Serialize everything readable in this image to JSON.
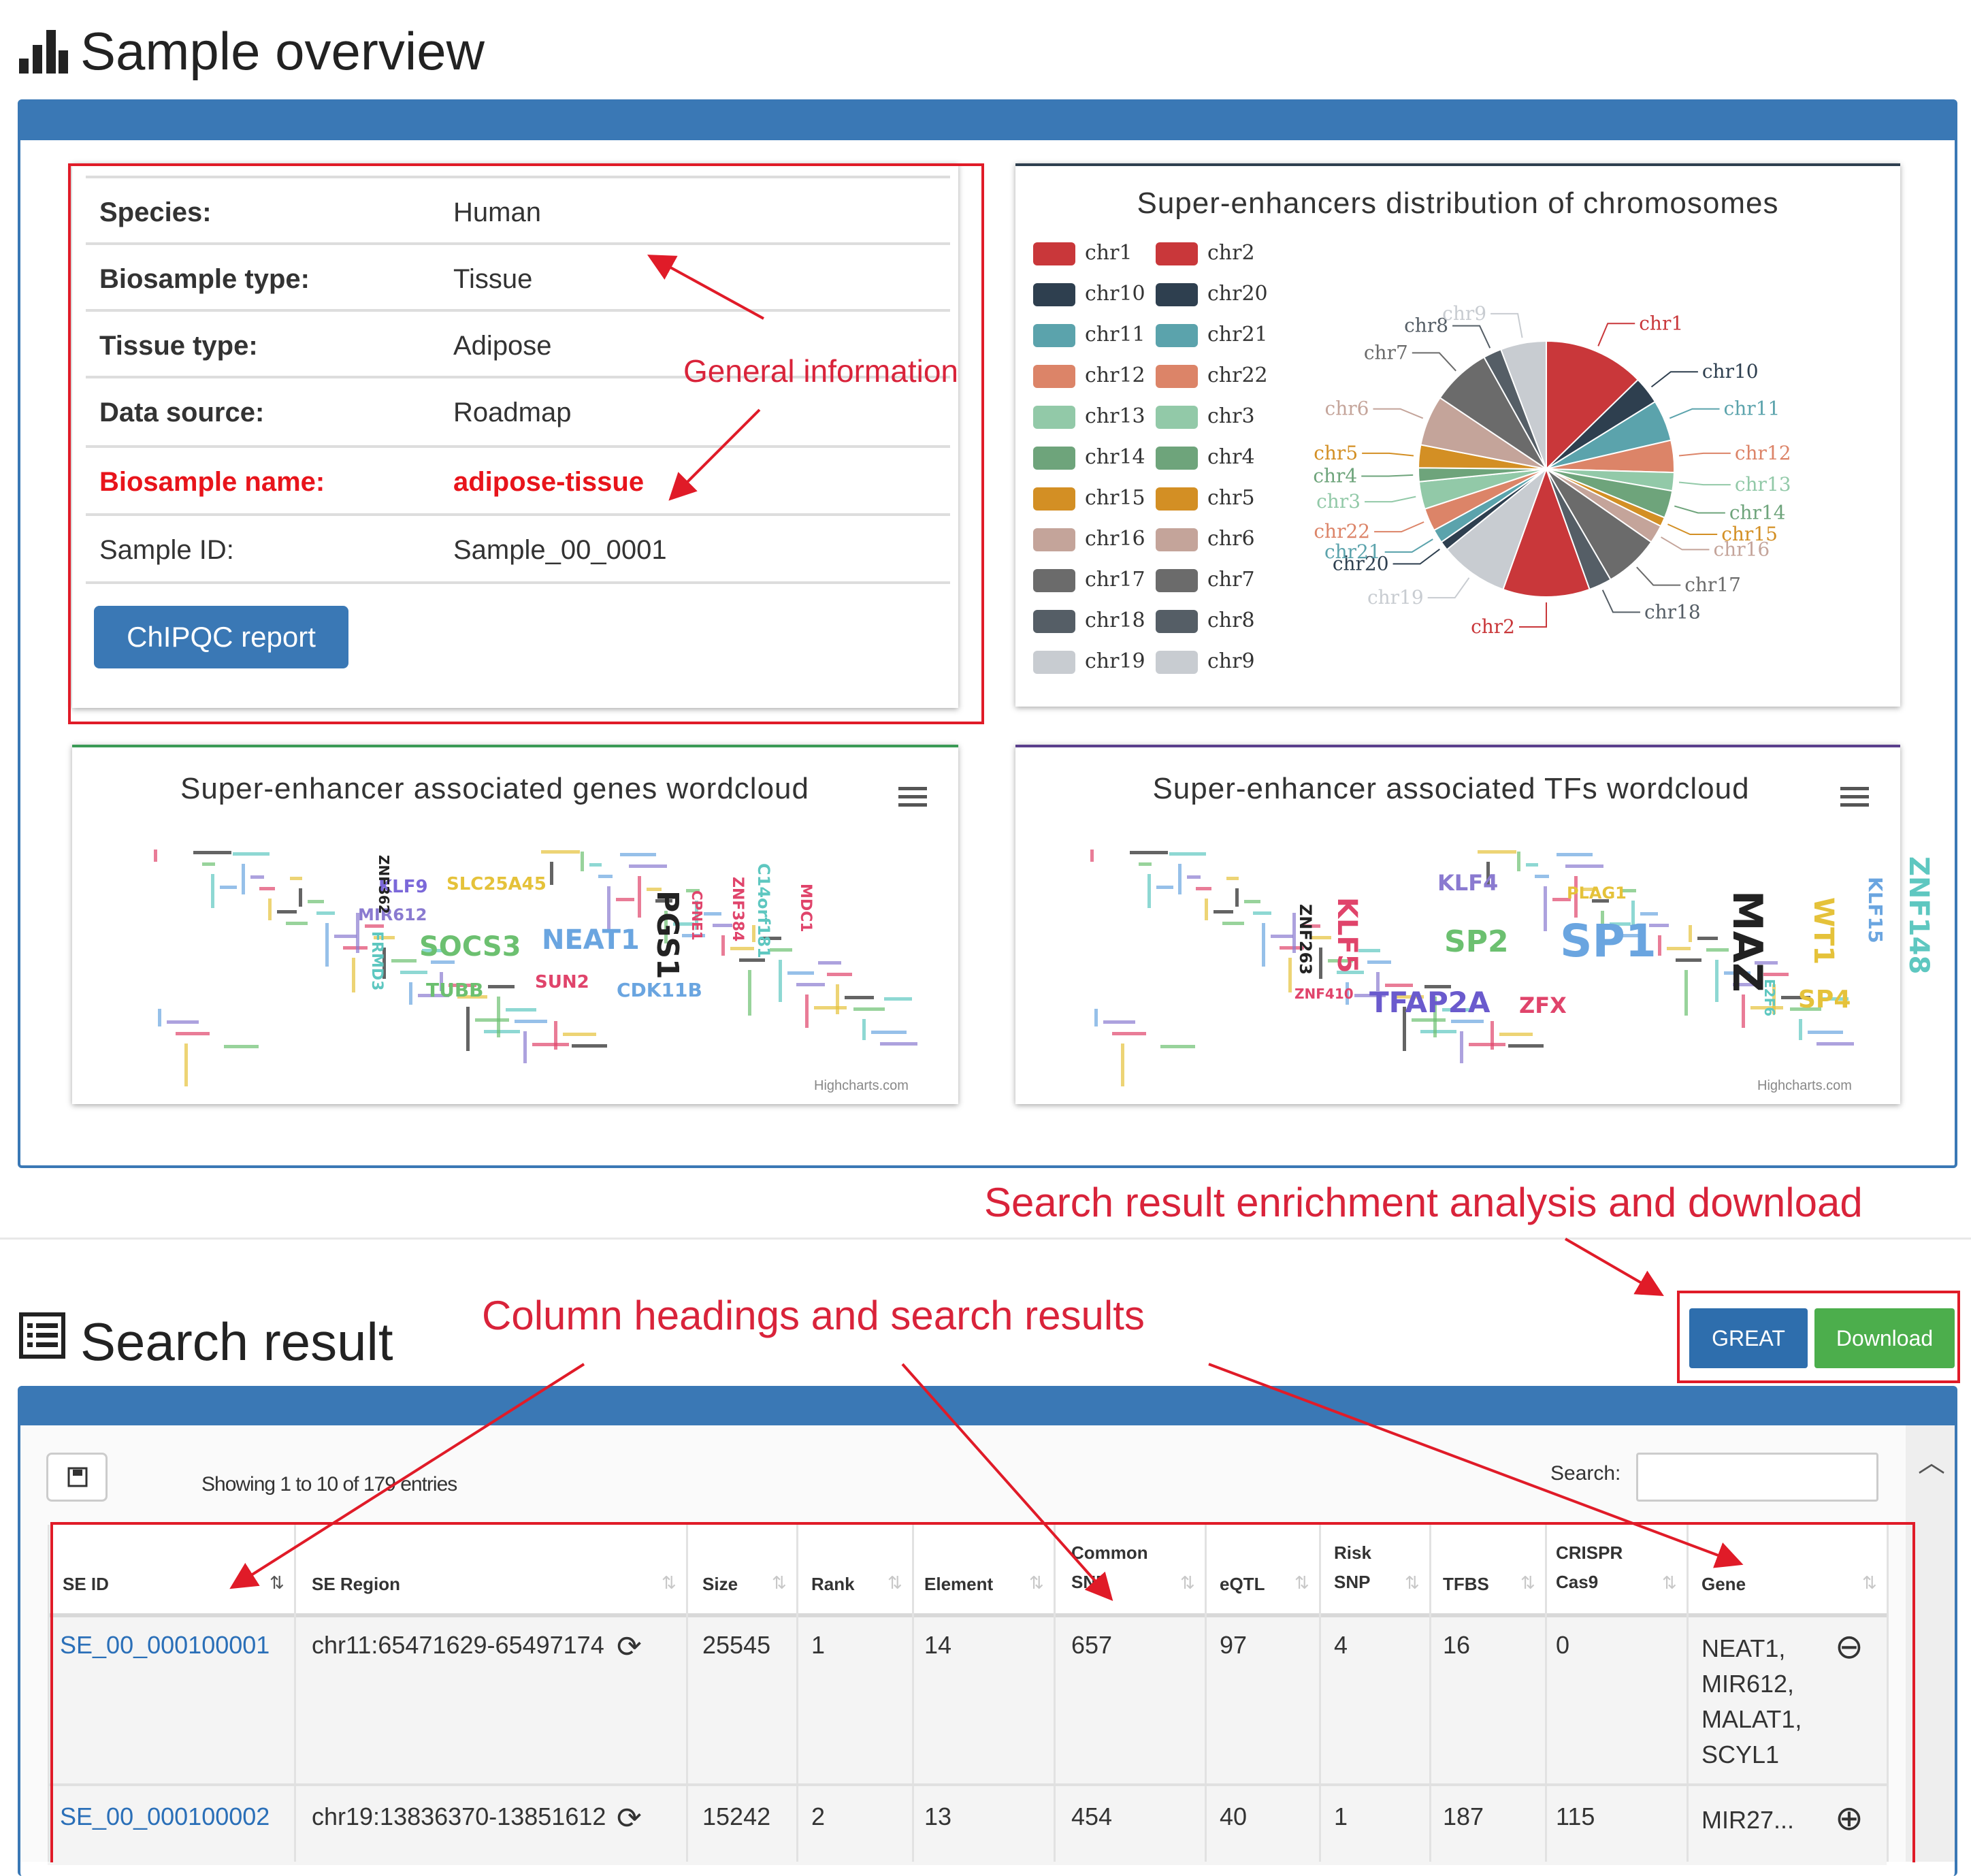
{
  "overview": {
    "title": "Sample overview",
    "info": [
      {
        "key": "Species:",
        "value": "Human"
      },
      {
        "key": "Biosample type:",
        "value": "Tissue"
      },
      {
        "key": "Tissue type:",
        "value": "Adipose"
      },
      {
        "key": "Data source:",
        "value": "Roadmap"
      },
      {
        "key": "Biosample name:",
        "value": "adipose-tissue"
      },
      {
        "key": "Sample ID:",
        "value": "Sample_00_0001"
      }
    ],
    "chipqc_label": "ChIPQC report"
  },
  "annotations": {
    "general": "General information",
    "enrichment": "Search result enrichment analysis and download",
    "columns": "Column headings and search results"
  },
  "pie": {
    "title": "Super-enhancers distribution of chromosomes",
    "legend_left": [
      "chr1",
      "chr10",
      "chr11",
      "chr12",
      "chr13",
      "chr14",
      "chr15",
      "chr16",
      "chr17",
      "chr18",
      "chr19"
    ],
    "legend_right": [
      "chr2",
      "chr20",
      "chr21",
      "chr22",
      "chr3",
      "chr4",
      "chr5",
      "chr6",
      "chr7",
      "chr8",
      "chr9"
    ],
    "colors": [
      "#c9373a",
      "#2e3f4f",
      "#5ba3ac",
      "#dc8468",
      "#92c9a8",
      "#6ea47b",
      "#d38f24",
      "#c4a49a",
      "#6b6b6b",
      "#555e66",
      "#c8ccd1"
    ]
  },
  "chart_data": {
    "type": "pie",
    "title": "Super-enhancers distribution of chromosomes",
    "categories": [
      "chr1",
      "chr10",
      "chr11",
      "chr12",
      "chr13",
      "chr14",
      "chr15",
      "chr16",
      "chr17",
      "chr18",
      "chr2",
      "chr19",
      "chr20",
      "chr21",
      "chr22",
      "chr3",
      "chr4",
      "chr5",
      "chr6",
      "chr7",
      "chr8",
      "chr9"
    ],
    "values": [
      11,
      3,
      4.5,
      3.5,
      2,
      3,
      1,
      2,
      6,
      2.5,
      9.5,
      7.5,
      1,
      1.5,
      2.5,
      3,
      1.5,
      2.5,
      5.5,
      6.5,
      2,
      5
    ],
    "legend_position": "left"
  },
  "pie_colors": [
    "#c9373a",
    "#2e3f4f",
    "#5ba3ac",
    "#dc8468",
    "#92c9a8",
    "#6ea47b",
    "#d38f24",
    "#c4a49a",
    "#6b6b6b",
    "#555e66",
    "#c9373a",
    "#c8ccd1",
    "#2e3f4f",
    "#5ba3ac",
    "#dc8468",
    "#92c9a8",
    "#6ea47b",
    "#d38f24",
    "#c4a49a",
    "#6b6b6b",
    "#555e66",
    "#c8ccd1"
  ],
  "genes_cloud": {
    "title": "Super-enhancer associated genes wordcloud",
    "credit": "Highcharts.com",
    "words": [
      {
        "t": "KLF9",
        "c": "#7b68d9"
      },
      {
        "t": "MIR612",
        "c": "#8a7ad0"
      },
      {
        "t": "SLC25A45",
        "c": "#e5c23a"
      },
      {
        "t": "SOCS3",
        "c": "#6cc070"
      },
      {
        "t": "NEAT1",
        "c": "#6aa5e0"
      },
      {
        "t": "PGS1",
        "c": "#222"
      },
      {
        "t": "TUBB",
        "c": "#6cc070"
      },
      {
        "t": "SUN2",
        "c": "#e0446b"
      },
      {
        "t": "CDK11B",
        "c": "#6aa5e0"
      },
      {
        "t": "FRMD3",
        "c": "#5ec7c0"
      },
      {
        "t": "ZNF362",
        "c": "#222"
      },
      {
        "t": "C14orf181",
        "c": "#5ec7c0"
      },
      {
        "t": "ZNF384",
        "c": "#e0446b"
      },
      {
        "t": "MDC1",
        "c": "#e0446b"
      },
      {
        "t": "CPNE1",
        "c": "#e0446b"
      }
    ]
  },
  "tfs_cloud": {
    "title": "Super-enhancer associated TFs wordcloud",
    "credit": "Highcharts.com",
    "words": [
      {
        "t": "KLF4",
        "c": "#8a7ad0"
      },
      {
        "t": "PLAG1",
        "c": "#e5c23a"
      },
      {
        "t": "KLF5",
        "c": "#e0446b"
      },
      {
        "t": "SP2",
        "c": "#6cc070"
      },
      {
        "t": "SP1",
        "c": "#6aa5e0"
      },
      {
        "t": "MAZ",
        "c": "#222"
      },
      {
        "t": "WT1",
        "c": "#e5c23a"
      },
      {
        "t": "KLF15",
        "c": "#6aa5e0"
      },
      {
        "t": "ZNF148",
        "c": "#5ec7c0"
      },
      {
        "t": "TFAP2A",
        "c": "#6a5acd"
      },
      {
        "t": "ZFX",
        "c": "#e0446b"
      },
      {
        "t": "SP4",
        "c": "#e5c23a"
      },
      {
        "t": "ZNF263",
        "c": "#222"
      },
      {
        "t": "ZNF410",
        "c": "#e0446b"
      },
      {
        "t": "E2F6",
        "c": "#5ec7c0"
      }
    ]
  },
  "search": {
    "title": "Search result",
    "great_label": "GREAT",
    "download_label": "Download",
    "showing": "Showing 1 to 10 of 179 entries",
    "search_label": "Search:",
    "search_value": "",
    "headers": [
      "SE ID",
      "SE Region",
      "Size",
      "Rank",
      "Element",
      "Common SNP",
      "eQTL",
      "Risk SNP",
      "TFBS",
      "CRISPR Cas9",
      "Gene"
    ],
    "rows": [
      {
        "id": "SE_00_000100001",
        "region": "chr11:65471629-65497174",
        "size": "25545",
        "rank": "1",
        "element": "14",
        "snp": "657",
        "eqtl": "97",
        "risk": "4",
        "tfbs": "16",
        "crispr": "0",
        "gene": [
          "NEAT1,",
          "MIR612,",
          "MALAT1,",
          "SCYL1"
        ]
      },
      {
        "id": "SE_00_000100002",
        "region": "chr19:13836370-13851612",
        "size": "15242",
        "rank": "2",
        "element": "13",
        "snp": "454",
        "eqtl": "40",
        "risk": "1",
        "tfbs": "187",
        "crispr": "115",
        "gene": [
          "MIR27..."
        ]
      }
    ]
  }
}
